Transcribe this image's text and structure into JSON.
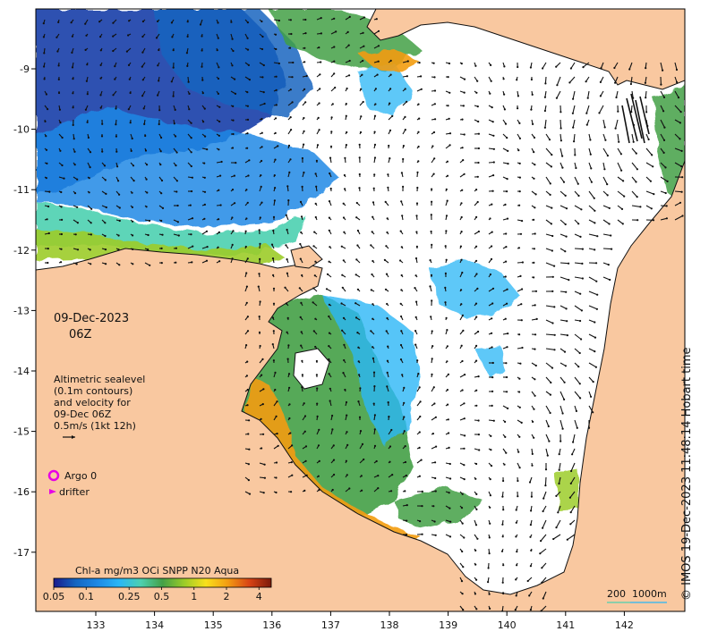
{
  "map": {
    "date": "09-Dec-2023",
    "time": "06Z",
    "altimetry_note": [
      "Altimetric sealevel",
      "(0.1m contours)",
      "and velocity for",
      "09-Dec 06Z",
      "0.5m/s (1kt 12h)"
    ],
    "legend": {
      "argo_label": "Argo 0",
      "drifter_label": "drifter"
    },
    "colorbar": {
      "title": "Chl-a mg/m3 OCi SNPP N20 Aqua",
      "ticks": [
        "0.05",
        "0.1",
        "0.25",
        "0.5",
        "1",
        "2",
        "4"
      ]
    },
    "scale_bar": {
      "label_200": "200",
      "label_1000": "1000m"
    },
    "lon_ticks": [
      "133",
      "134",
      "135",
      "136",
      "137",
      "138",
      "139",
      "140",
      "141",
      "142"
    ],
    "lat_ticks": [
      "-9",
      "-10",
      "-11",
      "-12",
      "-13",
      "-14",
      "-15",
      "-16",
      "-17"
    ],
    "credit": "© IMOS 19-Dec-2023 11:48:14 Hobart time",
    "colors": {
      "land": "#f9c8a0",
      "ocean": "#ffffff",
      "argo": "#e600e6",
      "drifter": "#e600e6",
      "colorbar_stops": [
        "#1a1a8c",
        "#1565c0",
        "#1e88e5",
        "#29b6f6",
        "#4dd0b0",
        "#43a047",
        "#9ccc28",
        "#f9e01b",
        "#f39c12",
        "#d84315",
        "#7b1a0a"
      ]
    }
  }
}
